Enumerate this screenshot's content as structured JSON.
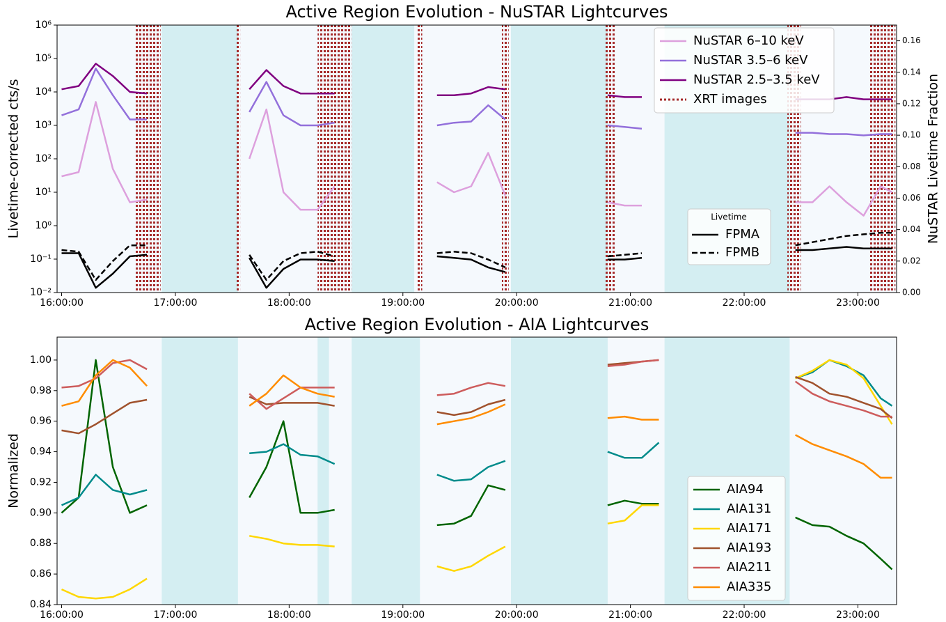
{
  "chart_data": [
    {
      "type": "line",
      "title": "Active Region Evolution - NuSTAR Lightcurves",
      "ylabel": "Livetime-corrected cts/s",
      "y2label": "NuSTAR Livetime Fraction",
      "yscale": "log",
      "xlim": [
        15.96,
        23.34
      ],
      "xticks": [
        {
          "value": 16,
          "label": "16:00:00"
        },
        {
          "value": 17,
          "label": "17:00:00"
        },
        {
          "value": 18,
          "label": "18:00:00"
        },
        {
          "value": 19,
          "label": "19:00:00"
        },
        {
          "value": 20,
          "label": "20:00:00"
        },
        {
          "value": 21,
          "label": "21:00:00"
        },
        {
          "value": 22,
          "label": "22:00:00"
        },
        {
          "value": 23,
          "label": "23:00:00"
        }
      ],
      "ylim": [
        0.01,
        1000000
      ],
      "yticks": [
        {
          "value": 0.01,
          "label": "10⁻²"
        },
        {
          "value": 0.1,
          "label": "10⁻¹"
        },
        {
          "value": 1,
          "label": "10⁰"
        },
        {
          "value": 10,
          "label": "10¹"
        },
        {
          "value": 100,
          "label": "10²"
        },
        {
          "value": 1000,
          "label": "10³"
        },
        {
          "value": 10000,
          "label": "10⁴"
        },
        {
          "value": 100000,
          "label": "10⁵"
        },
        {
          "value": 1000000,
          "label": "10⁶"
        }
      ],
      "y2lim": [
        0,
        0.17
      ],
      "y2ticks": [
        {
          "value": 0,
          "label": "0.00"
        },
        {
          "value": 0.02,
          "label": "0.02"
        },
        {
          "value": 0.04,
          "label": "0.04"
        },
        {
          "value": 0.06,
          "label": "0.06"
        },
        {
          "value": 0.08,
          "label": "0.08"
        },
        {
          "value": 0.1,
          "label": "0.10"
        },
        {
          "value": 0.12,
          "label": "0.12"
        },
        {
          "value": 0.14,
          "label": "0.14"
        },
        {
          "value": 0.16,
          "label": "0.16"
        }
      ],
      "legend_loc": "upper right",
      "legend2_title": "Livetime",
      "shaded": [
        [
          16.88,
          17.55
        ],
        [
          18.55,
          19.1
        ],
        [
          19.95,
          20.8
        ],
        [
          21.3,
          22.4
        ]
      ],
      "spans": {
        "name": "XRT images",
        "color": "#a52a2a",
        "ranges": [
          [
            16.65,
            16.87
          ],
          [
            17.53,
            17.57
          ],
          [
            18.25,
            18.55
          ],
          [
            19.12,
            19.17
          ],
          [
            19.87,
            19.93
          ],
          [
            20.78,
            20.87
          ],
          [
            22.38,
            22.5
          ],
          [
            23.1,
            23.33
          ]
        ]
      },
      "x": [
        16,
        16.15,
        16.3,
        16.45,
        16.6,
        16.75,
        16.9,
        17.05,
        17.2,
        17.35,
        17.5,
        17.65,
        17.8,
        17.95,
        18.1,
        18.25,
        18.4,
        18.55,
        18.7,
        18.85,
        19,
        19.15,
        19.3,
        19.45,
        19.6,
        19.75,
        19.9,
        20.05,
        20.2,
        20.35,
        20.5,
        20.65,
        20.8,
        20.95,
        21.1,
        21.25,
        21.4,
        21.55,
        21.7,
        21.85,
        22,
        22.15,
        22.3,
        22.45,
        22.6,
        22.75,
        22.9,
        23.05,
        23.2,
        23.3
      ],
      "series": [
        {
          "name": "NuSTAR 6–10 keV",
          "color": "#dda0dd",
          "values": [
            30,
            40,
            5000,
            50,
            5,
            6,
            null,
            null,
            null,
            null,
            null,
            100,
            3000,
            10,
            3,
            3,
            15,
            null,
            null,
            null,
            null,
            null,
            20,
            10,
            15,
            150,
            8,
            null,
            null,
            null,
            null,
            null,
            5,
            4,
            4,
            null,
            null,
            null,
            null,
            null,
            null,
            null,
            null,
            5,
            5,
            15,
            5,
            2,
            15,
            10
          ]
        },
        {
          "name": "NuSTAR 3.5–6 keV",
          "color": "#9370db",
          "values": [
            2000,
            3000,
            50000,
            8000,
            1500,
            1500,
            null,
            null,
            null,
            null,
            null,
            2500,
            20000,
            2000,
            1000,
            1000,
            1200,
            null,
            null,
            null,
            null,
            null,
            1000,
            1200,
            1300,
            4000,
            1500,
            null,
            null,
            null,
            null,
            null,
            1000,
            900,
            800,
            null,
            null,
            null,
            null,
            null,
            null,
            null,
            null,
            600,
            600,
            550,
            550,
            500,
            550,
            550
          ]
        },
        {
          "name": "NuSTAR 2.5–3.5 keV",
          "color": "#800080",
          "values": [
            12000,
            15000,
            70000,
            30000,
            10000,
            9000,
            null,
            null,
            null,
            null,
            null,
            12000,
            45000,
            15000,
            9000,
            9000,
            9000,
            null,
            null,
            null,
            null,
            null,
            8000,
            8000,
            9000,
            14000,
            12000,
            null,
            null,
            null,
            null,
            null,
            8000,
            7000,
            7000,
            null,
            null,
            null,
            null,
            null,
            null,
            null,
            null,
            6000,
            6000,
            6000,
            7000,
            6000,
            6000,
            6000
          ]
        },
        {
          "name": "FPMA",
          "color": "#000000",
          "axis": "y2",
          "linestyle": "solid",
          "values": [
            0.025,
            0.025,
            0.003,
            0.012,
            0.023,
            0.024,
            null,
            null,
            null,
            null,
            null,
            0.022,
            0.003,
            0.015,
            0.021,
            0.021,
            0.02,
            null,
            null,
            null,
            null,
            null,
            0.023,
            0.022,
            0.021,
            0.016,
            0.013,
            null,
            null,
            null,
            null,
            null,
            0.021,
            0.021,
            0.022,
            null,
            null,
            null,
            null,
            null,
            null,
            null,
            null,
            0.027,
            0.027,
            0.028,
            0.029,
            0.028,
            0.028,
            0.028
          ]
        },
        {
          "name": "FPMB",
          "color": "#000000",
          "axis": "y2",
          "linestyle": "dashed",
          "values": [
            0.027,
            0.026,
            0.008,
            0.02,
            0.03,
            0.03,
            null,
            null,
            null,
            null,
            null,
            0.024,
            0.008,
            0.02,
            0.025,
            0.026,
            0.023,
            null,
            null,
            null,
            null,
            null,
            0.025,
            0.026,
            0.025,
            0.021,
            0.016,
            null,
            null,
            null,
            null,
            null,
            0.023,
            0.024,
            0.025,
            null,
            null,
            null,
            null,
            null,
            null,
            null,
            null,
            0.03,
            0.032,
            0.034,
            0.036,
            0.037,
            0.038,
            0.038
          ]
        }
      ]
    },
    {
      "type": "line",
      "title": "Active Region Evolution - AIA Lightcurves",
      "ylabel": "Normalized",
      "xlim": [
        15.96,
        23.34
      ],
      "xticks": [
        {
          "value": 16,
          "label": "16:00:00"
        },
        {
          "value": 17,
          "label": "17:00:00"
        },
        {
          "value": 18,
          "label": "18:00:00"
        },
        {
          "value": 19,
          "label": "19:00:00"
        },
        {
          "value": 20,
          "label": "20:00:00"
        },
        {
          "value": 21,
          "label": "21:00:00"
        },
        {
          "value": 22,
          "label": "22:00:00"
        },
        {
          "value": 23,
          "label": "23:00:00"
        }
      ],
      "ylim": [
        0.84,
        1.015
      ],
      "yticks": [
        0.84,
        0.86,
        0.88,
        {
          "value": 0.9,
          "label": "0.90"
        },
        0.92,
        0.94,
        0.96,
        0.98,
        {
          "value": 1,
          "label": "1.00"
        }
      ],
      "legend_loc": "lower right",
      "shaded": [
        [
          16.88,
          17.55
        ],
        [
          18.25,
          18.35
        ],
        [
          18.55,
          19.15
        ],
        [
          19.95,
          20.8
        ],
        [
          21.3,
          22.4
        ]
      ],
      "x": [
        16,
        16.15,
        16.3,
        16.45,
        16.6,
        16.75,
        16.9,
        17.05,
        17.2,
        17.35,
        17.5,
        17.65,
        17.8,
        17.95,
        18.1,
        18.25,
        18.4,
        18.55,
        18.7,
        18.85,
        19,
        19.15,
        19.3,
        19.45,
        19.6,
        19.75,
        19.9,
        20.05,
        20.2,
        20.35,
        20.5,
        20.65,
        20.8,
        20.95,
        21.1,
        21.25,
        21.4,
        21.55,
        21.7,
        21.85,
        22,
        22.15,
        22.3,
        22.45,
        22.6,
        22.75,
        22.9,
        23.05,
        23.2,
        23.3
      ],
      "series": [
        {
          "name": "AIA94",
          "color": "#006400",
          "values": [
            0.9,
            0.91,
            1,
            0.93,
            0.9,
            0.905,
            null,
            null,
            null,
            null,
            null,
            0.91,
            0.93,
            0.96,
            0.9,
            0.9,
            0.902,
            null,
            null,
            null,
            null,
            null,
            0.892,
            0.893,
            0.898,
            0.918,
            0.915,
            null,
            null,
            null,
            null,
            null,
            0.905,
            0.908,
            0.906,
            0.906,
            null,
            null,
            null,
            null,
            null,
            null,
            null,
            0.897,
            0.892,
            0.891,
            0.885,
            0.88,
            0.87,
            0.863
          ]
        },
        {
          "name": "AIA131",
          "color": "#008b8b",
          "values": [
            0.905,
            0.91,
            0.925,
            0.915,
            0.912,
            0.915,
            null,
            null,
            null,
            null,
            null,
            0.939,
            0.94,
            0.945,
            0.938,
            0.937,
            0.932,
            null,
            null,
            null,
            null,
            null,
            0.925,
            0.921,
            0.922,
            0.93,
            0.934,
            null,
            null,
            null,
            null,
            null,
            0.94,
            0.936,
            0.936,
            0.946,
            null,
            null,
            null,
            null,
            null,
            null,
            null,
            0.988,
            0.992,
            1,
            0.996,
            0.99,
            0.975,
            0.97
          ]
        },
        {
          "name": "AIA171",
          "color": "#ffd700",
          "values": [
            0.85,
            0.845,
            0.844,
            0.845,
            0.85,
            0.857,
            null,
            null,
            null,
            null,
            null,
            0.885,
            0.883,
            0.88,
            0.879,
            0.879,
            0.878,
            null,
            null,
            null,
            null,
            null,
            0.865,
            0.862,
            0.865,
            0.872,
            0.878,
            null,
            null,
            null,
            null,
            null,
            0.893,
            0.895,
            0.905,
            0.905,
            null,
            null,
            null,
            null,
            null,
            null,
            null,
            0.988,
            0.993,
            1,
            0.997,
            0.988,
            0.97,
            0.958
          ]
        },
        {
          "name": "AIA193",
          "color": "#a0522d",
          "values": [
            0.954,
            0.952,
            0.958,
            0.965,
            0.972,
            0.974,
            null,
            null,
            null,
            null,
            null,
            0.976,
            0.971,
            0.972,
            0.972,
            0.972,
            0.97,
            null,
            null,
            null,
            null,
            null,
            0.966,
            0.964,
            0.966,
            0.971,
            0.974,
            null,
            null,
            null,
            null,
            null,
            0.997,
            0.998,
            0.999,
            1,
            null,
            null,
            null,
            null,
            null,
            null,
            null,
            0.989,
            0.985,
            0.978,
            0.976,
            0.972,
            0.968,
            0.962
          ]
        },
        {
          "name": "AIA211",
          "color": "#cd5c5c",
          "values": [
            0.982,
            0.983,
            0.988,
            0.998,
            1,
            0.994,
            null,
            null,
            null,
            null,
            null,
            0.978,
            0.968,
            0.975,
            0.982,
            0.982,
            0.982,
            null,
            null,
            null,
            null,
            null,
            0.977,
            0.978,
            0.982,
            0.985,
            0.983,
            null,
            null,
            null,
            null,
            null,
            0.996,
            0.997,
            0.999,
            1,
            null,
            null,
            null,
            null,
            null,
            null,
            null,
            0.986,
            0.978,
            0.973,
            0.97,
            0.967,
            0.963,
            0.963
          ]
        },
        {
          "name": "AIA335",
          "color": "#ff8c00",
          "values": [
            0.97,
            0.973,
            0.99,
            1,
            0.995,
            0.983,
            null,
            null,
            null,
            null,
            null,
            0.97,
            0.978,
            0.99,
            0.982,
            0.978,
            0.976,
            null,
            null,
            null,
            null,
            null,
            0.958,
            0.96,
            0.962,
            0.966,
            0.971,
            null,
            null,
            null,
            null,
            null,
            0.962,
            0.963,
            0.961,
            0.961,
            null,
            null,
            null,
            null,
            null,
            null,
            null,
            0.951,
            0.945,
            0.941,
            0.937,
            0.932,
            0.923,
            0.923
          ]
        }
      ]
    }
  ]
}
